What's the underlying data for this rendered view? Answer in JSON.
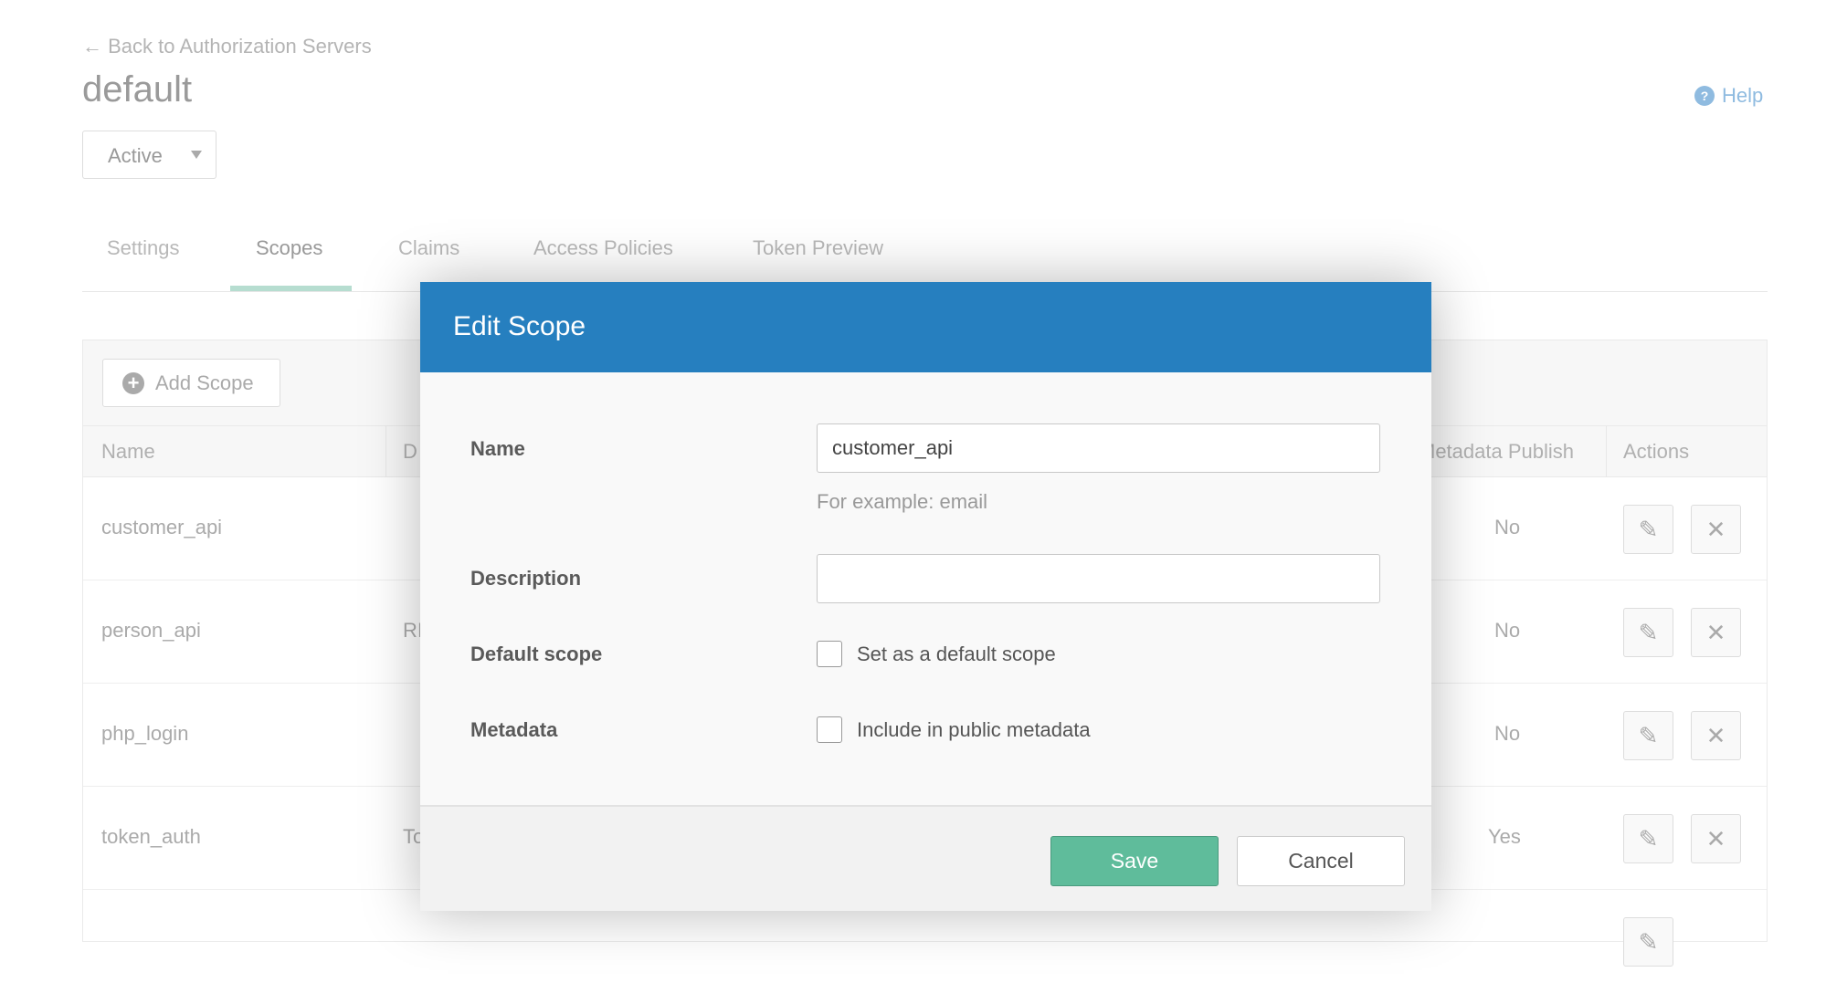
{
  "header": {
    "back_link": "← Back to Authorization Servers",
    "title": "default",
    "status": "Active",
    "help": "Help"
  },
  "tabs": [
    {
      "label": "Settings"
    },
    {
      "label": "Scopes",
      "active": true
    },
    {
      "label": "Claims"
    },
    {
      "label": "Access Policies"
    },
    {
      "label": "Token Preview"
    }
  ],
  "toolbar": {
    "add_scope": "Add Scope"
  },
  "table": {
    "columns": [
      "Name",
      "D",
      "Metadata Publish",
      "Actions"
    ],
    "rows": [
      {
        "name": "customer_api",
        "description": "",
        "metadata": "No"
      },
      {
        "name": "person_api",
        "description": "RI",
        "metadata": "No"
      },
      {
        "name": "php_login",
        "description": "",
        "metadata": "No"
      },
      {
        "name": "token_auth",
        "description": "To",
        "metadata": "Yes"
      }
    ]
  },
  "modal": {
    "title": "Edit Scope",
    "name_label": "Name",
    "name_value": "customer_api",
    "name_hint": "For example: email",
    "description_label": "Description",
    "description_value": "",
    "default_label": "Default scope",
    "default_checkbox": "Set as a default scope",
    "default_checked": false,
    "metadata_label": "Metadata",
    "metadata_checkbox": "Include in public metadata",
    "metadata_checked": false,
    "save": "Save",
    "cancel": "Cancel"
  },
  "colors": {
    "modal_header": "#267fbf",
    "save": "#5fbc9b",
    "tab_active_underline": "#b6ddd0",
    "help": "#8fbbe0"
  }
}
